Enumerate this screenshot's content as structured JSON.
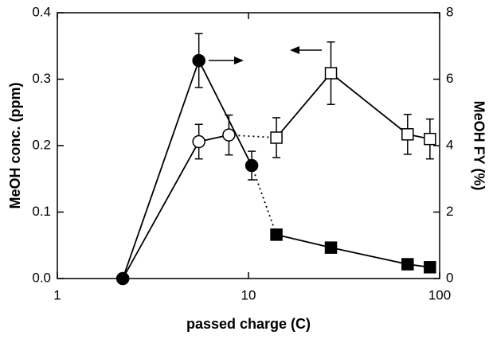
{
  "chart_data": {
    "type": "scatter",
    "xlabel": "passed charge (C)",
    "ylabel": "MeOH conc. (ppm)",
    "y2label": "MeOH FY (%)",
    "xscale": "log",
    "xlim": [
      1,
      100
    ],
    "xticks": [
      1,
      10,
      100
    ],
    "ylim": [
      0,
      0.4
    ],
    "yticks": [
      {
        "value": 0,
        "label": "0.0"
      },
      0.1,
      0.2,
      0.3,
      0.4
    ],
    "y2lim": [
      0,
      8
    ],
    "y2ticks": [
      0,
      2,
      4,
      6,
      8
    ],
    "series": [
      {
        "color": "#000000",
        "marker_fill": "#ffffff",
        "x": [
          2.2,
          5.5,
          7.9,
          14,
          27,
          68,
          89
        ],
        "values": [
          0,
          0.206,
          0.216,
          0.212,
          0.309,
          0.217,
          0.21
        ],
        "errors": [
          null,
          0.026,
          0.03,
          0.03,
          0.047,
          0.03,
          0.03
        ],
        "markers": [
          null,
          "circle",
          "circle",
          "square",
          "square",
          "square",
          "square"
        ],
        "line_styles": [
          "solid",
          "solid",
          "dotted",
          "solid",
          "solid",
          "solid"
        ]
      },
      {
        "color": "#000000",
        "marker_fill": "#000000",
        "axis": "y2",
        "x": [
          2.2,
          5.5,
          10.4,
          14,
          27,
          68,
          89
        ],
        "values": [
          0,
          6.56,
          3.4,
          1.32,
          0.93,
          0.43,
          0.34
        ],
        "errors": [
          null,
          0.81,
          0.43,
          null,
          null,
          null,
          null
        ],
        "markers": [
          "circle",
          "circle",
          "circle",
          "square",
          "square",
          "square",
          "square"
        ],
        "line_styles": [
          "solid",
          "solid",
          "dotted",
          "solid",
          "solid",
          "solid"
        ]
      }
    ]
  }
}
